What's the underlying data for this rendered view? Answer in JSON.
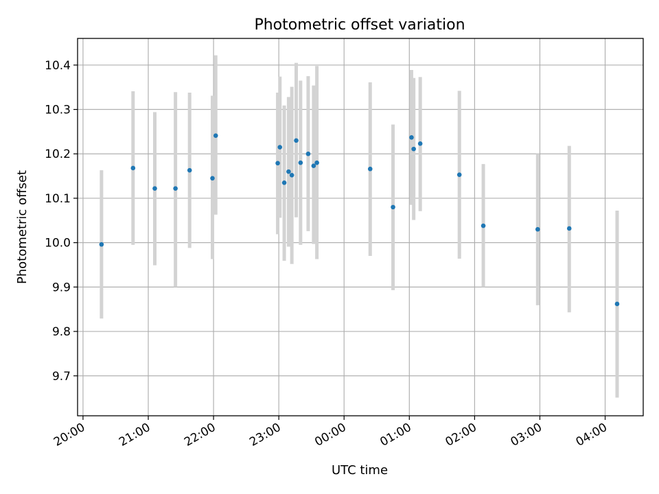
{
  "chart_data": {
    "type": "scatter",
    "title": "Photometric offset variation",
    "xlabel": "UTC time",
    "ylabel": "Photometric offset",
    "x_axis": {
      "kind": "time",
      "ticks": [
        "20:00",
        "21:00",
        "22:00",
        "23:00",
        "00:00",
        "01:00",
        "02:00",
        "03:00",
        "04:00"
      ],
      "range": [
        "19:55",
        "04:35"
      ]
    },
    "y_axis": {
      "ticks": [
        9.7,
        9.8,
        9.9,
        10.0,
        10.1,
        10.2,
        10.3,
        10.4
      ],
      "range": [
        9.61,
        10.46
      ]
    },
    "grid": true,
    "series": [
      {
        "marker_color": "#1f77b4",
        "errorbar_color": "#d3d3d3",
        "points": [
          {
            "x": "20:17",
            "y": 9.996,
            "ylow": 9.829,
            "yhigh": 10.163
          },
          {
            "x": "20:46",
            "y": 10.168,
            "ylow": 9.995,
            "yhigh": 10.341
          },
          {
            "x": "21:06",
            "y": 10.122,
            "ylow": 9.949,
            "yhigh": 10.294
          },
          {
            "x": "21:25",
            "y": 10.122,
            "ylow": 9.9,
            "yhigh": 10.339
          },
          {
            "x": "21:38",
            "y": 10.163,
            "ylow": 9.988,
            "yhigh": 10.338
          },
          {
            "x": "21:59",
            "y": 10.145,
            "ylow": 9.963,
            "yhigh": 10.331
          },
          {
            "x": "22:02",
            "y": 10.241,
            "ylow": 10.063,
            "yhigh": 10.422
          },
          {
            "x": "22:59",
            "y": 10.179,
            "ylow": 10.019,
            "yhigh": 10.338
          },
          {
            "x": "23:01",
            "y": 10.215,
            "ylow": 10.056,
            "yhigh": 10.374
          },
          {
            "x": "23:05",
            "y": 10.135,
            "ylow": 9.959,
            "yhigh": 10.309
          },
          {
            "x": "23:09",
            "y": 10.16,
            "ylow": 9.991,
            "yhigh": 10.328
          },
          {
            "x": "23:12",
            "y": 10.152,
            "ylow": 9.952,
            "yhigh": 10.351
          },
          {
            "x": "23:16",
            "y": 10.23,
            "ylow": 10.057,
            "yhigh": 10.405
          },
          {
            "x": "23:20",
            "y": 10.18,
            "ylow": 9.995,
            "yhigh": 10.365
          },
          {
            "x": "23:27",
            "y": 10.2,
            "ylow": 10.026,
            "yhigh": 10.375
          },
          {
            "x": "23:32",
            "y": 10.173,
            "ylow": 9.997,
            "yhigh": 10.354
          },
          {
            "x": "23:35",
            "y": 10.18,
            "ylow": 9.963,
            "yhigh": 10.398
          },
          {
            "x": "00:24",
            "y": 10.166,
            "ylow": 9.97,
            "yhigh": 10.361
          },
          {
            "x": "00:45",
            "y": 10.08,
            "ylow": 9.893,
            "yhigh": 10.266
          },
          {
            "x": "01:02",
            "y": 10.237,
            "ylow": 10.085,
            "yhigh": 10.389
          },
          {
            "x": "01:04",
            "y": 10.211,
            "ylow": 10.051,
            "yhigh": 10.371
          },
          {
            "x": "01:10",
            "y": 10.223,
            "ylow": 10.071,
            "yhigh": 10.373
          },
          {
            "x": "01:46",
            "y": 10.153,
            "ylow": 9.964,
            "yhigh": 10.342
          },
          {
            "x": "02:08",
            "y": 10.038,
            "ylow": 9.9,
            "yhigh": 10.177
          },
          {
            "x": "02:58",
            "y": 10.03,
            "ylow": 9.859,
            "yhigh": 10.2
          },
          {
            "x": "03:27",
            "y": 10.032,
            "ylow": 9.843,
            "yhigh": 10.218
          },
          {
            "x": "04:11",
            "y": 9.862,
            "ylow": 9.651,
            "yhigh": 10.072
          }
        ]
      }
    ]
  }
}
